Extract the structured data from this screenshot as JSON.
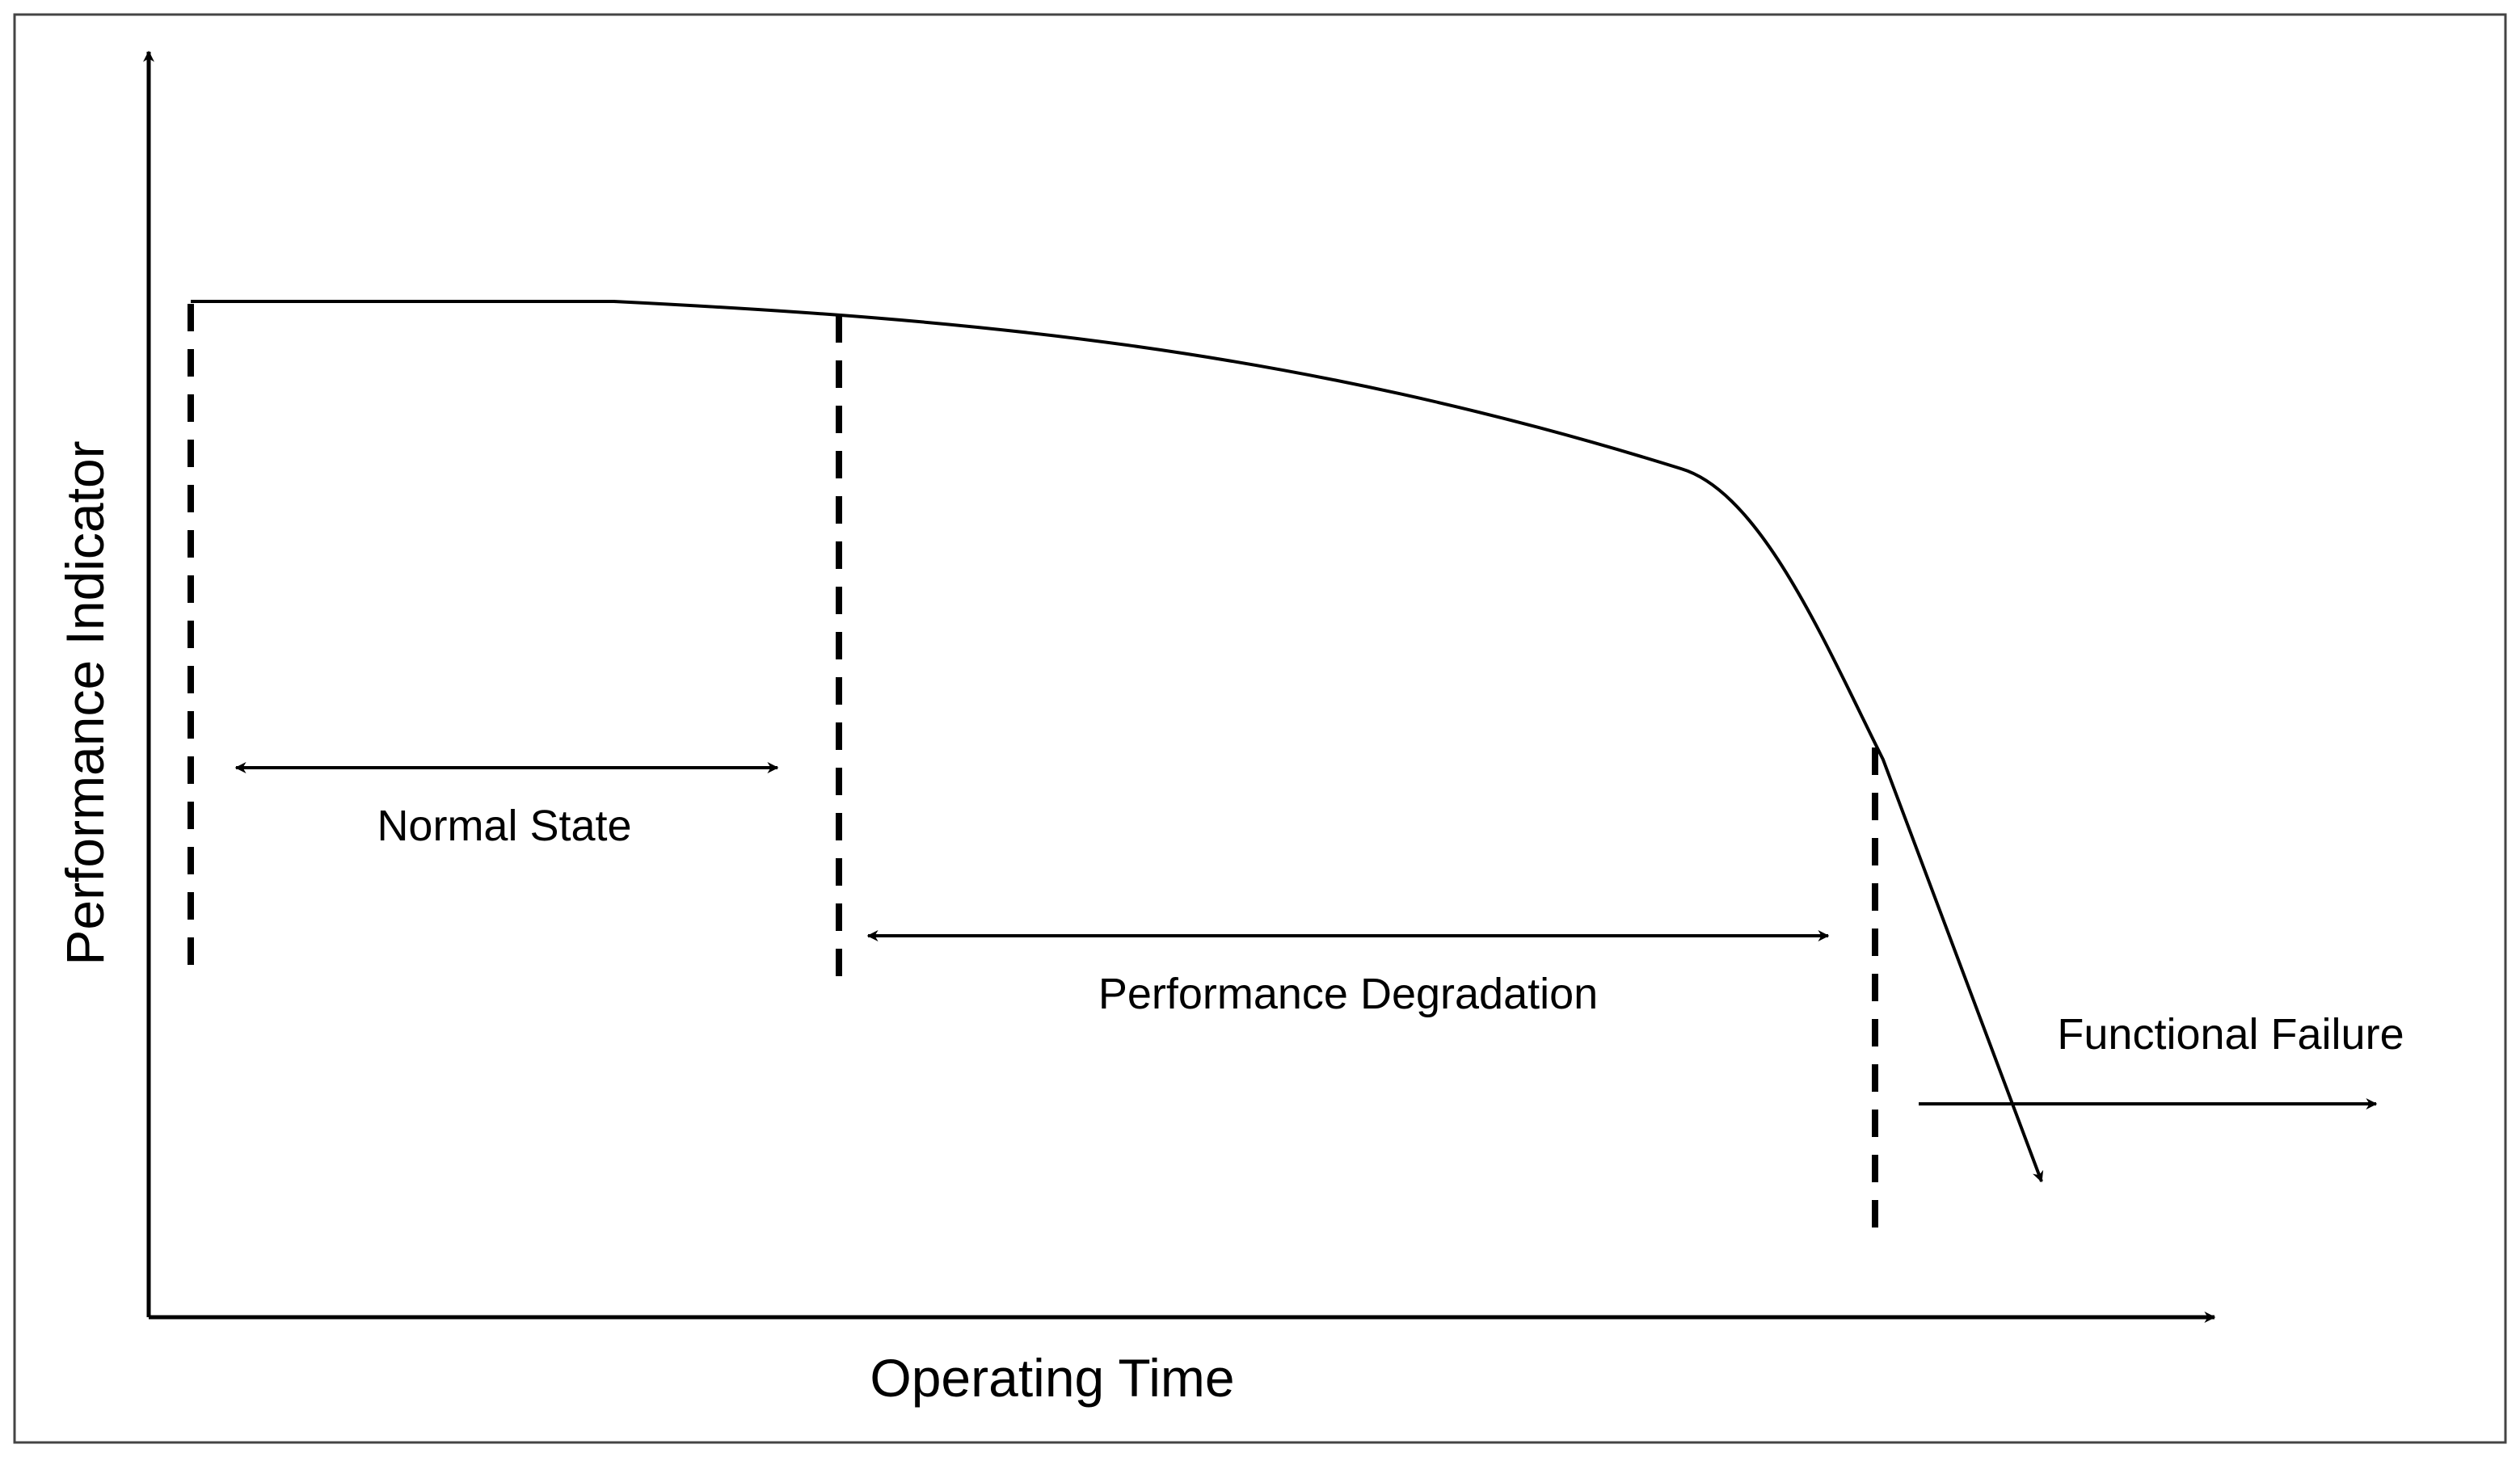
{
  "axes": {
    "x_label": "Operating Time",
    "y_label": "Performance Indicator"
  },
  "phases": {
    "normal_state": "Normal State",
    "performance_degradation": "Performance Degradation",
    "functional_failure": "Functional Failure"
  },
  "colors": {
    "line": "#000000",
    "frame": "#444444",
    "background": "#ffffff"
  }
}
